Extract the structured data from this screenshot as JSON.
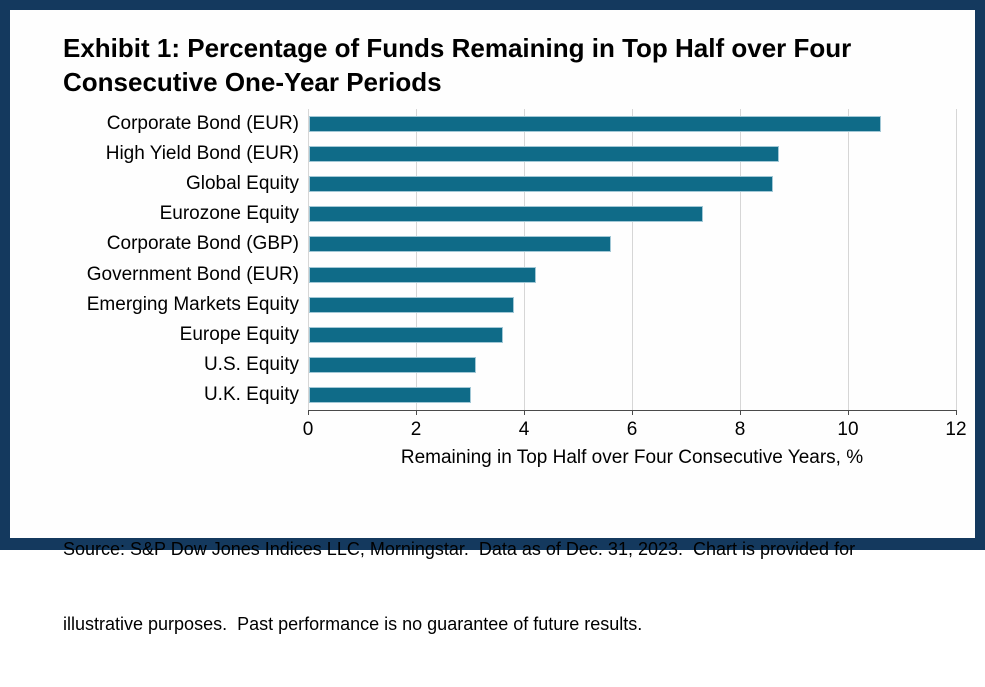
{
  "title": {
    "lines": [
      "Exhibit 1: Percentage of Funds Remaining in Top Half over Four",
      "Consecutive One-Year Periods"
    ]
  },
  "chart_data": {
    "type": "bar",
    "orientation": "horizontal",
    "title": "Exhibit 1: Percentage of Funds Remaining in Top Half over Four Consecutive One-Year Periods",
    "categories": [
      "Corporate Bond (EUR)",
      "High Yield Bond (EUR)",
      "Global Equity",
      "Eurozone Equity",
      "Corporate Bond (GBP)",
      "Government Bond (EUR)",
      "Emerging Markets Equity",
      "Europe Equity",
      "U.S. Equity",
      "U.K. Equity"
    ],
    "values": [
      10.6,
      8.7,
      8.6,
      7.3,
      5.6,
      4.2,
      3.8,
      3.6,
      3.1,
      3.0
    ],
    "xlabel": "Remaining in Top Half over Four Consecutive Years, %",
    "ylabel": "",
    "xlim": [
      0,
      12
    ],
    "xticks": [
      0,
      2,
      4,
      6,
      8,
      10,
      12
    ],
    "grid": true,
    "legend": false,
    "bar_color": "#0f6b88",
    "bar_border_color": "#a2c8d6",
    "gridline_color": "#d6d6d6",
    "axis_color": "#4a4a4a"
  },
  "source": {
    "lines": [
      "Source: S&P Dow Jones Indices LLC, Morningstar.  Data as of Dec. 31, 2023.  Chart is provided for",
      "illustrative purposes.  Past performance is no guarantee of future results."
    ]
  },
  "colors": {
    "frame_border": "#14395e",
    "background": "#fefefe",
    "text": "#000000"
  }
}
